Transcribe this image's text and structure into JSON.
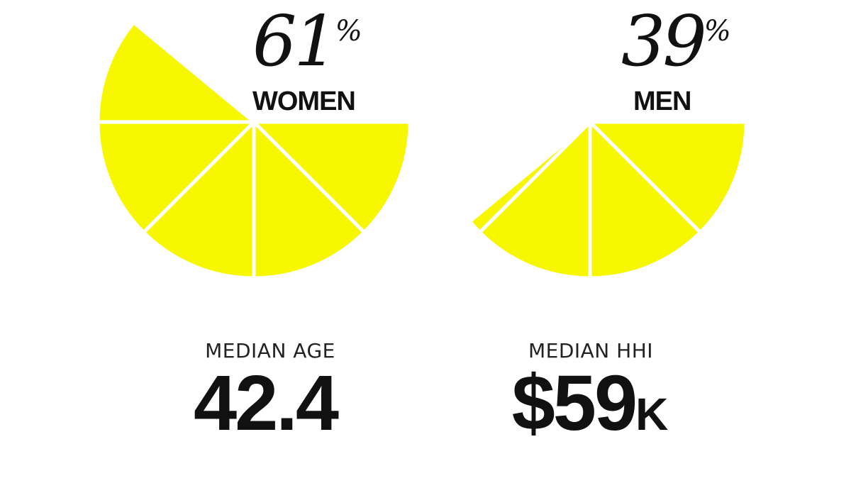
{
  "chart_data": [
    {
      "type": "pie",
      "label": "WOMEN",
      "value": 61,
      "value_text": "61",
      "unit": "%",
      "color": "#f7f700"
    },
    {
      "type": "pie",
      "label": "MEN",
      "value": 39,
      "value_text": "39",
      "unit": "%",
      "color": "#f7f700"
    }
  ],
  "stats": [
    {
      "label": "MEDIAN AGE",
      "value": "42.4",
      "suffix": ""
    },
    {
      "label": "MEDIAN HHI",
      "value": "$59",
      "suffix": "K"
    }
  ]
}
